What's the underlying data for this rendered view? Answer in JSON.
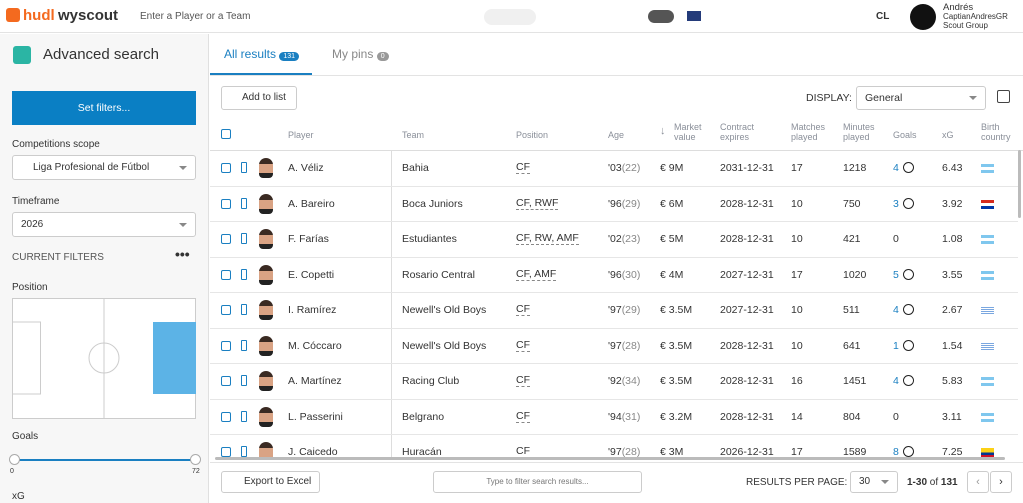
{
  "header": {
    "brand": "hudl",
    "product": "wyscout",
    "search_placeholder": "Enter a Player or a Team",
    "region": "CL",
    "user_name": "Andrés",
    "user_handle": "CaptianAndresGR",
    "user_group": "Scout Group"
  },
  "sidebar": {
    "title": "Advanced search",
    "set_filters": "Set filters...",
    "competitions_label": "Competitions scope",
    "competition": "Liga Profesional de Fútbol",
    "timeframe_label": "Timeframe",
    "timeframe": "2026",
    "current_filters": "CURRENT FILTERS",
    "position_label": "Position",
    "goals_label": "Goals",
    "goals_min": "0",
    "goals_max": "72",
    "xg_label": "xG"
  },
  "tabs": [
    {
      "label": "All results",
      "badge": "131"
    },
    {
      "label": "My pins",
      "badge": "0"
    }
  ],
  "toolbar": {
    "add_to_list": "Add to list",
    "display_label": "DISPLAY:",
    "display_value": "General"
  },
  "table": {
    "columns": [
      "Player",
      "Team",
      "Position",
      "Age",
      "Market value",
      "Contract expires",
      "Matches played",
      "Minutes played",
      "Goals",
      "xG",
      "Birth country"
    ],
    "rows": [
      {
        "player": "A. Véliz",
        "team": "Bahia",
        "position": "CF",
        "birth_year": "'03",
        "age": "(22)",
        "market_value": "€ 9M",
        "contract_expires": "2031-12-31",
        "matches_played": 17,
        "minutes_played": 1218,
        "goals": 4,
        "xg": 6.43
      },
      {
        "player": "A. Bareiro",
        "team": "Boca Juniors",
        "position": "CF, RWF",
        "birth_year": "'96",
        "age": "(29)",
        "market_value": "€ 6M",
        "contract_expires": "2028-12-31",
        "matches_played": 10,
        "minutes_played": 750,
        "goals": 3,
        "xg": 3.92
      },
      {
        "player": "F. Farías",
        "team": "Estudiantes",
        "position": "CF, RW, AMF",
        "birth_year": "'02",
        "age": "(23)",
        "market_value": "€ 5M",
        "contract_expires": "2028-12-31",
        "matches_played": 10,
        "minutes_played": 421,
        "goals": 0,
        "xg": 1.08
      },
      {
        "player": "E. Copetti",
        "team": "Rosario Central",
        "position": "CF, AMF",
        "birth_year": "'96",
        "age": "(30)",
        "market_value": "€ 4M",
        "contract_expires": "2027-12-31",
        "matches_played": 17,
        "minutes_played": 1020,
        "goals": 5,
        "xg": 3.55
      },
      {
        "player": "I. Ramírez",
        "team": "Newell's Old Boys",
        "position": "CF",
        "birth_year": "'97",
        "age": "(29)",
        "market_value": "€ 3.5M",
        "contract_expires": "2027-12-31",
        "matches_played": 10,
        "minutes_played": 511,
        "goals": 4,
        "xg": 2.67
      },
      {
        "player": "M. Cóccaro",
        "team": "Newell's Old Boys",
        "position": "CF",
        "birth_year": "'97",
        "age": "(28)",
        "market_value": "€ 3.5M",
        "contract_expires": "2028-12-31",
        "matches_played": 10,
        "minutes_played": 641,
        "goals": 1,
        "xg": 1.54
      },
      {
        "player": "A. Martínez",
        "team": "Racing Club",
        "position": "CF",
        "birth_year": "'92",
        "age": "(34)",
        "market_value": "€ 3.5M",
        "contract_expires": "2028-12-31",
        "matches_played": 16,
        "minutes_played": 1451,
        "goals": 4,
        "xg": 5.83
      },
      {
        "player": "L. Passerini",
        "team": "Belgrano",
        "position": "CF",
        "birth_year": "'94",
        "age": "(31)",
        "market_value": "€ 3.2M",
        "contract_expires": "2028-12-31",
        "matches_played": 14,
        "minutes_played": 804,
        "goals": 0,
        "xg": 3.11
      },
      {
        "player": "J. Caicedo",
        "team": "Huracán",
        "position": "CF",
        "birth_year": "'97",
        "age": "(28)",
        "market_value": "€ 3M",
        "contract_expires": "2026-12-31",
        "matches_played": 17,
        "minutes_played": 1589,
        "goals": 8,
        "xg": 7.25
      }
    ]
  },
  "footer": {
    "export": "Export to Excel",
    "filter_placeholder": "Type to filter search results...",
    "per_page_label": "RESULTS PER PAGE:",
    "per_page": "30",
    "range": "1-30",
    "of": "of",
    "total": "131"
  }
}
